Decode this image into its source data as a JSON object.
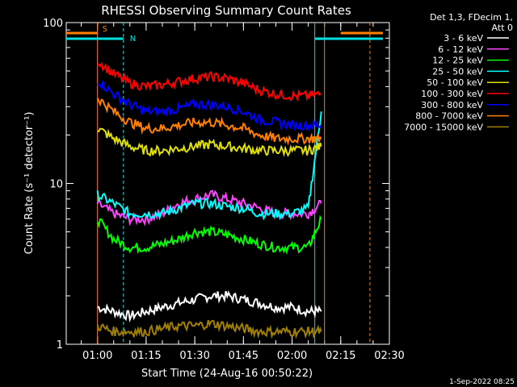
{
  "chart_data": {
    "type": "line",
    "title": "RHESSI Observing Summary Count Rates",
    "xlabel": "Start Time (24-Aug-16 00:50:22)",
    "ylabel": "Count Rate (s⁻¹ detector⁻¹)",
    "y_scale": "log",
    "ylim": [
      1,
      100
    ],
    "xlim": [
      "00:50:22",
      "02:30"
    ],
    "x_ticks": [
      "01:00",
      "01:15",
      "01:30",
      "01:45",
      "02:00",
      "02:15",
      "02:30"
    ],
    "y_ticks": [
      "1",
      "10",
      "100"
    ],
    "legend_title": [
      "Det 1,3, FDecim 1,",
      "Att 0"
    ],
    "legend_position": "right",
    "footer_date": "1-Sep-2022 08:25",
    "flags": [
      {
        "label": "S",
        "color": "#ff8000",
        "spans": [
          [
            "00:50:22",
            "01:00"
          ],
          [
            "02:15",
            "02:28"
          ]
        ]
      },
      {
        "label": "N",
        "color": "#00e0e0",
        "spans": [
          [
            "00:50:22",
            "01:08"
          ],
          [
            "02:07",
            "02:28"
          ]
        ]
      }
    ],
    "markers": [
      {
        "time": "01:00",
        "color": "#ff8000"
      },
      {
        "time": "01:08",
        "color": "#00e0e0"
      },
      {
        "time": "02:07",
        "color": "#00e0e0"
      },
      {
        "time": "02:10",
        "color": "#ff8000"
      },
      {
        "time": "02:24",
        "color": "#ff8000"
      }
    ],
    "series": [
      {
        "name": "3 - 6 keV",
        "color": "#ffffff",
        "x": [
          "01:00",
          "01:05",
          "01:10",
          "01:15",
          "01:20",
          "01:25",
          "01:30",
          "01:35",
          "01:40",
          "01:45",
          "01:50",
          "01:55",
          "02:00",
          "02:05",
          "02:09"
        ],
        "values": [
          1.7,
          1.6,
          1.5,
          1.6,
          1.7,
          1.8,
          1.9,
          2.0,
          2.0,
          1.9,
          1.8,
          1.7,
          1.7,
          1.6,
          1.6
        ]
      },
      {
        "name": "6 - 12 keV",
        "color": "#ff40ff",
        "x": [
          "01:00",
          "01:05",
          "01:10",
          "01:15",
          "01:20",
          "01:25",
          "01:30",
          "01:35",
          "01:40",
          "01:45",
          "01:50",
          "01:55",
          "02:00",
          "02:05",
          "02:09"
        ],
        "values": [
          7.5,
          6.5,
          6.0,
          6.0,
          6.5,
          7.5,
          8.0,
          8.5,
          8.0,
          7.5,
          7.0,
          6.5,
          6.5,
          6.5,
          7.5
        ]
      },
      {
        "name": "12 - 25 keV",
        "color": "#00ff00",
        "x": [
          "01:00",
          "01:05",
          "01:10",
          "01:15",
          "01:20",
          "01:25",
          "01:30",
          "01:35",
          "01:40",
          "01:45",
          "01:50",
          "01:55",
          "02:00",
          "02:05",
          "02:09"
        ],
        "values": [
          6.0,
          4.5,
          4.0,
          4.0,
          4.2,
          4.5,
          5.0,
          5.0,
          4.8,
          4.5,
          4.2,
          4.0,
          4.0,
          4.0,
          6.0
        ]
      },
      {
        "name": "25 - 50 keV",
        "color": "#00ffff",
        "x": [
          "01:00",
          "01:05",
          "01:10",
          "01:15",
          "01:20",
          "01:25",
          "01:30",
          "01:35",
          "01:40",
          "01:45",
          "01:50",
          "01:55",
          "02:00",
          "02:05",
          "02:09"
        ],
        "values": [
          8.5,
          7.5,
          6.5,
          6.5,
          6.5,
          7.0,
          7.5,
          7.5,
          7.2,
          7.0,
          6.5,
          6.5,
          6.5,
          7.0,
          28.0
        ]
      },
      {
        "name": "50 - 100 keV",
        "color": "#e0e000",
        "x": [
          "01:00",
          "01:05",
          "01:10",
          "01:15",
          "01:20",
          "01:25",
          "01:30",
          "01:35",
          "01:40",
          "01:45",
          "01:50",
          "01:55",
          "02:00",
          "02:05",
          "02:09"
        ],
        "values": [
          22,
          19,
          17,
          16,
          16,
          16.5,
          17,
          17.5,
          17,
          16.5,
          16,
          16,
          16,
          16,
          17
        ]
      },
      {
        "name": "100 - 300 keV",
        "color": "#ff0000",
        "x": [
          "01:00",
          "01:05",
          "01:10",
          "01:15",
          "01:20",
          "01:25",
          "01:30",
          "01:35",
          "01:40",
          "01:45",
          "01:50",
          "01:55",
          "02:00",
          "02:05",
          "02:09"
        ],
        "values": [
          58,
          48,
          42,
          40,
          41,
          43,
          45,
          46,
          45,
          42,
          38,
          36,
          35,
          35,
          36
        ]
      },
      {
        "name": "300 - 800 keV",
        "color": "#0000ff",
        "x": [
          "01:00",
          "01:05",
          "01:10",
          "01:15",
          "01:20",
          "01:25",
          "01:30",
          "01:35",
          "01:40",
          "01:45",
          "01:50",
          "01:55",
          "02:00",
          "02:05",
          "02:09"
        ],
        "values": [
          44,
          36,
          31,
          28,
          28,
          29,
          31,
          31,
          30,
          28,
          25,
          24,
          23,
          23,
          23
        ]
      },
      {
        "name": "800 - 7000 keV",
        "color": "#ff8000",
        "x": [
          "01:00",
          "01:05",
          "01:10",
          "01:15",
          "01:20",
          "01:25",
          "01:30",
          "01:35",
          "01:40",
          "01:45",
          "01:50",
          "01:55",
          "02:00",
          "02:05",
          "02:09"
        ],
        "values": [
          34,
          28,
          24,
          22,
          22,
          23,
          24,
          24,
          23,
          22,
          20,
          19,
          19,
          19,
          19
        ]
      },
      {
        "name": "7000 - 15000 keV",
        "color": "#a08000",
        "x": [
          "01:00",
          "01:05",
          "01:10",
          "01:15",
          "01:20",
          "01:25",
          "01:30",
          "01:35",
          "01:40",
          "01:45",
          "01:50",
          "01:55",
          "02:00",
          "02:05",
          "02:09"
        ],
        "values": [
          1.3,
          1.2,
          1.2,
          1.2,
          1.25,
          1.3,
          1.3,
          1.35,
          1.3,
          1.25,
          1.2,
          1.2,
          1.2,
          1.2,
          1.2
        ]
      }
    ]
  }
}
